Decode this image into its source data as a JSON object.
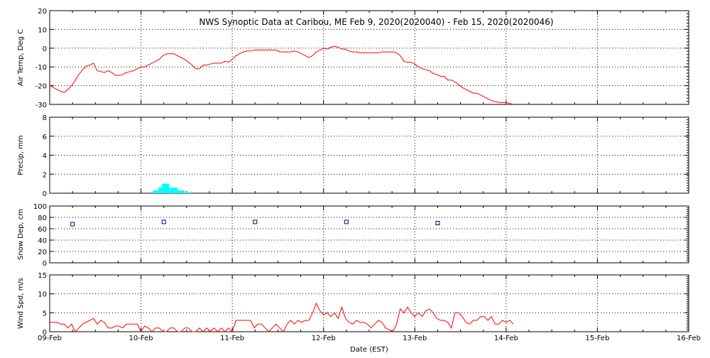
{
  "title": "NWS Synoptic Data at Caribou, ME   Feb  9, 2020(2020040) - Feb 15, 2020(2020046)",
  "colors": {
    "temp": "#ff0000",
    "precip": "#00ffff",
    "snow": "#00008b",
    "wind": "#ff0000",
    "grid": "#000000"
  },
  "chart_data": [
    {
      "type": "line",
      "ylabel": "Air Temp, Deg C",
      "ylim": [
        -30,
        20
      ],
      "yticks": [
        "20",
        "10",
        "0",
        "-10",
        "-20",
        "-30"
      ],
      "series": [
        {
          "x": [
            0,
            0.04,
            0.08,
            0.12,
            0.16,
            0.2,
            0.24,
            0.28,
            0.32,
            0.36,
            0.4,
            0.44,
            0.48,
            0.52,
            0.56,
            0.6,
            0.64,
            0.68,
            0.72,
            0.76,
            0.8,
            0.84,
            0.88,
            0.92,
            0.96,
            1,
            1.04,
            1.08,
            1.12,
            1.16,
            1.2,
            1.24,
            1.28,
            1.32,
            1.36,
            1.4,
            1.44,
            1.48,
            1.52,
            1.56,
            1.6,
            1.64,
            1.68,
            1.72,
            1.76,
            1.8,
            1.84,
            1.88,
            1.92,
            1.96,
            2,
            2.04,
            2.08,
            2.12,
            2.16,
            2.2,
            2.24,
            2.28,
            2.32,
            2.36,
            2.4,
            2.44,
            2.48,
            2.52,
            2.56,
            2.6,
            2.64,
            2.68,
            2.72,
            2.76,
            2.8,
            2.84,
            2.88,
            2.92,
            2.96,
            3,
            3.04,
            3.08,
            3.12,
            3.16,
            3.2,
            3.24,
            3.28,
            3.32,
            3.36,
            3.4,
            3.44,
            3.48,
            3.52,
            3.56,
            3.6,
            3.64,
            3.68,
            3.72,
            3.76,
            3.8,
            3.84,
            3.88,
            3.92,
            3.96,
            4,
            4.04,
            4.08,
            4.12,
            4.16,
            4.2,
            4.24,
            4.28,
            4.32,
            4.36,
            4.4,
            4.44,
            4.48,
            4.52,
            4.56,
            4.6,
            4.64,
            4.68,
            4.72,
            4.76,
            4.8,
            4.84,
            4.88,
            4.92,
            4.96,
            5,
            5.04,
            5.08
          ],
          "values": [
            -20,
            -21,
            -22,
            -23,
            -23.5,
            -22,
            -20,
            -17,
            -14,
            -11.5,
            -9.5,
            -9,
            -8,
            -12,
            -12.5,
            -13,
            -12,
            -13,
            -14.5,
            -14.5,
            -14,
            -13,
            -12.5,
            -12,
            -11,
            -10,
            -10,
            -9,
            -8,
            -7,
            -6,
            -4,
            -3,
            -3,
            -3,
            -4,
            -5,
            -6,
            -7.5,
            -9,
            -11,
            -11,
            -9,
            -9,
            -8.5,
            -8,
            -8,
            -8,
            -7,
            -7.5,
            -6,
            -4,
            -3,
            -2,
            -1.5,
            -1.5,
            -1,
            -1,
            -1,
            -1,
            -1,
            -1,
            -1,
            -2,
            -2,
            -2,
            -2,
            -1.5,
            -2,
            -3,
            -4,
            -5,
            -4,
            -2,
            -1,
            0,
            -0.5,
            0.5,
            1,
            0.5,
            -0.5,
            -0.5,
            -1.5,
            -2,
            -2,
            -2.5,
            -2.5,
            -2.5,
            -2.5,
            -2.5,
            -2.5,
            -2,
            -2,
            -2,
            -2,
            -2.5,
            -4,
            -7,
            -7.5,
            -7.5,
            -8.5,
            -10,
            -11,
            -11.5,
            -12,
            -13.5,
            -14,
            -15,
            -15,
            -17,
            -17,
            -18,
            -19.5,
            -21,
            -22,
            -23,
            -24,
            -24,
            -25,
            -26,
            -27,
            -28,
            -28.5,
            -29,
            -29,
            -29,
            -29.5,
            -30
          ]
        }
      ]
    },
    {
      "type": "bar",
      "ylabel": "Precip, mm",
      "ylim": [
        0,
        8
      ],
      "yticks": [
        "8",
        "6",
        "4",
        "2",
        "0"
      ],
      "bins": [
        {
          "x0": 1.13,
          "x1": 1.19,
          "value": 0.3
        },
        {
          "x0": 1.19,
          "x1": 1.23,
          "value": 0.6
        },
        {
          "x0": 1.23,
          "x1": 1.31,
          "value": 1.0
        },
        {
          "x0": 1.31,
          "x1": 1.4,
          "value": 0.6
        },
        {
          "x0": 1.4,
          "x1": 1.48,
          "value": 0.3
        },
        {
          "x0": 1.48,
          "x1": 1.55,
          "value": 0.1
        }
      ]
    },
    {
      "type": "scatter",
      "ylabel": "Snow Dep, cm",
      "ylim": [
        0,
        100
      ],
      "yticks": [
        "100",
        "80",
        "60",
        "40",
        "20",
        "0"
      ],
      "x": [
        0.25,
        1.25,
        2.25,
        3.25,
        4.25
      ],
      "values": [
        68,
        72,
        72,
        72,
        70
      ]
    },
    {
      "type": "line",
      "ylabel": "Wind Spd, m/s",
      "xlabel": "Date (EST)",
      "ylim": [
        0,
        15
      ],
      "yticks": [
        "15",
        "10",
        "5",
        "0"
      ],
      "series": [
        {
          "x": [
            0,
            0.04,
            0.08,
            0.12,
            0.16,
            0.2,
            0.24,
            0.28,
            0.32,
            0.36,
            0.4,
            0.44,
            0.48,
            0.52,
            0.56,
            0.6,
            0.64,
            0.68,
            0.72,
            0.76,
            0.8,
            0.84,
            0.88,
            0.92,
            0.96,
            1,
            1.04,
            1.08,
            1.12,
            1.16,
            1.2,
            1.24,
            1.28,
            1.32,
            1.36,
            1.4,
            1.44,
            1.48,
            1.52,
            1.56,
            1.6,
            1.64,
            1.68,
            1.72,
            1.76,
            1.8,
            1.84,
            1.88,
            1.92,
            1.96,
            2,
            2.04,
            2.08,
            2.12,
            2.16,
            2.2,
            2.24,
            2.28,
            2.32,
            2.36,
            2.4,
            2.44,
            2.48,
            2.52,
            2.56,
            2.6,
            2.64,
            2.68,
            2.72,
            2.76,
            2.8,
            2.84,
            2.88,
            2.92,
            2.96,
            3,
            3.04,
            3.08,
            3.12,
            3.16,
            3.2,
            3.24,
            3.28,
            3.32,
            3.36,
            3.4,
            3.44,
            3.48,
            3.52,
            3.56,
            3.6,
            3.64,
            3.68,
            3.72,
            3.76,
            3.8,
            3.84,
            3.88,
            3.92,
            3.96,
            4,
            4.04,
            4.08,
            4.12,
            4.16,
            4.2,
            4.24,
            4.28,
            4.32,
            4.36,
            4.4,
            4.44,
            4.48,
            4.52,
            4.56,
            4.6,
            4.64,
            4.68,
            4.72,
            4.76,
            4.8,
            4.84,
            4.88,
            4.92,
            4.96,
            5,
            5.04,
            5.08
          ],
          "values": [
            2.5,
            2.5,
            2.5,
            2,
            2,
            1,
            2,
            0,
            1,
            2,
            2.5,
            3,
            3.5,
            2,
            3,
            2.5,
            1,
            1,
            1.5,
            1.5,
            1,
            2,
            2,
            2,
            2,
            0,
            1.5,
            1,
            0,
            1,
            1,
            0,
            0,
            1,
            1,
            0,
            0,
            1,
            1,
            0,
            0,
            1,
            0,
            1,
            0,
            1,
            0,
            1,
            0,
            1,
            0,
            3,
            3,
            3,
            3,
            3,
            1,
            2,
            2,
            1,
            0,
            1,
            2,
            1,
            0,
            2,
            3,
            2,
            3,
            2.5,
            3,
            3,
            5,
            7.5,
            5.5,
            4.5,
            5,
            4,
            5,
            3.5,
            6.5,
            3.5,
            2.5,
            2,
            3,
            2.5,
            2.5,
            2,
            1,
            2,
            3,
            2.5,
            1,
            0.5,
            0,
            2,
            6,
            5,
            6.5,
            5,
            4,
            5,
            4,
            5.5,
            6,
            5,
            3.5,
            3,
            3,
            2.5,
            1,
            5,
            5,
            4,
            2.5,
            2,
            3,
            3,
            4,
            4,
            3,
            4,
            2,
            2,
            3,
            2.5,
            3,
            2
          ]
        }
      ]
    }
  ],
  "x_ticks": [
    "09-Feb",
    "10-Feb",
    "11-Feb",
    "12-Feb",
    "13-Feb",
    "14-Feb",
    "15-Feb",
    "16-Feb"
  ]
}
